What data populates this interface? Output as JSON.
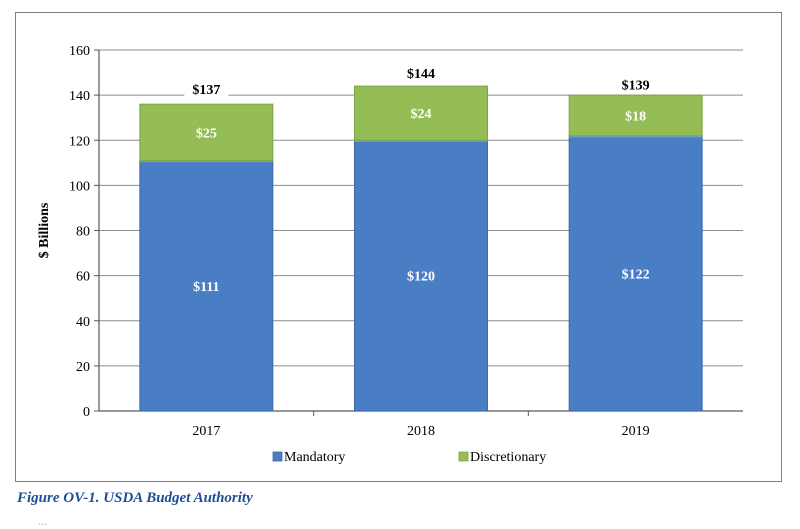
{
  "caption": "Figure OV-1. USDA Budget Authority",
  "page_fragment": "...",
  "colors": {
    "mandatory": "#4a7ec4",
    "mandatory_edge": "#3b6aa8",
    "discretionary": "#95bd56",
    "discretionary_edge": "#7fa446",
    "gridline": "#8c8c8c",
    "axis": "#595959",
    "text": "#000000",
    "segment_label": "#ffffff",
    "caption": "#1f4e96"
  },
  "chart_data": {
    "type": "bar",
    "stacked": true,
    "categories": [
      "2017",
      "2018",
      "2019"
    ],
    "series": [
      {
        "name": "Mandatory",
        "values": [
          111,
          120,
          122
        ],
        "labels": [
          "$111",
          "$120",
          "$122"
        ]
      },
      {
        "name": "Discretionary",
        "values": [
          25,
          24,
          18
        ],
        "labels": [
          "$25",
          "$24",
          "$18"
        ]
      }
    ],
    "totals": [
      137,
      144,
      139
    ],
    "total_labels": [
      "$137",
      "$144",
      "$139"
    ],
    "xlabel": "",
    "ylabel": "$ Billions",
    "ylim": [
      0,
      160
    ],
    "yticks": [
      0,
      20,
      40,
      60,
      80,
      100,
      120,
      140,
      160
    ],
    "grid": true,
    "legend": "bottom-center"
  }
}
